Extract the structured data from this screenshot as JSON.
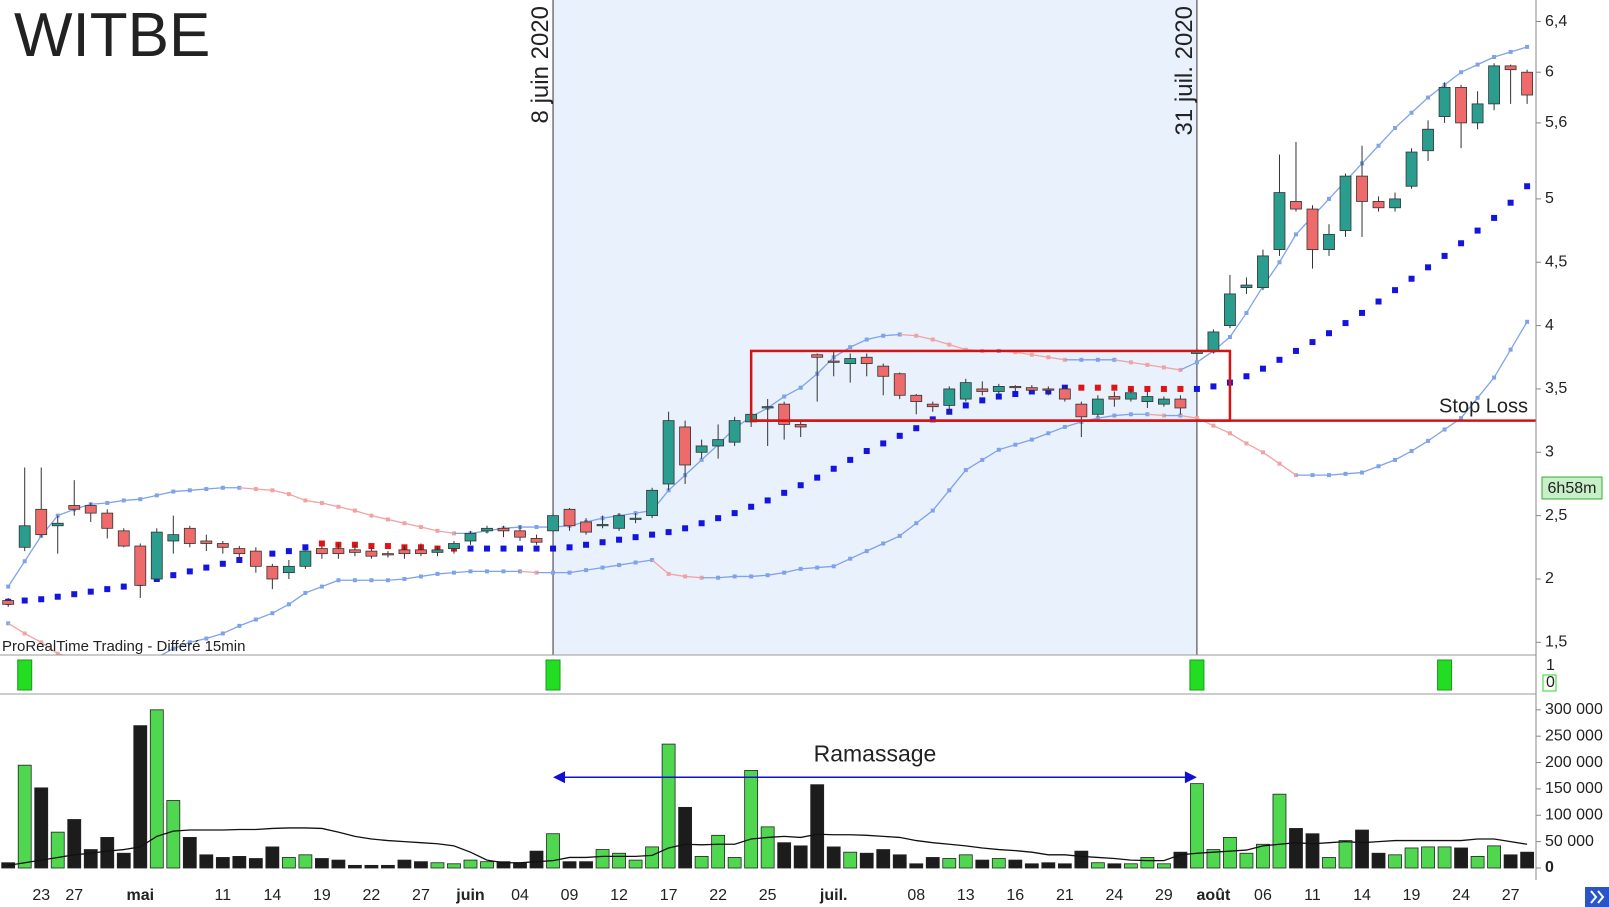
{
  "chart_data": [
    {
      "type": "candlestick",
      "watermark": "WITBE",
      "source": "ProRealTime Trading - Différé 15min",
      "timer": "6h58m",
      "categories": [
        null,
        null,
        "23",
        null,
        "27",
        null,
        null,
        null,
        "mai",
        null,
        null,
        null,
        null,
        "11",
        null,
        null,
        "14",
        null,
        null,
        "19",
        null,
        null,
        "22",
        null,
        null,
        "27",
        null,
        null,
        "juin",
        null,
        null,
        "04",
        null,
        null,
        "09",
        null,
        null,
        "12",
        null,
        null,
        "17",
        null,
        null,
        "22",
        null,
        null,
        "25",
        null,
        null,
        null,
        "juil.",
        null,
        null,
        null,
        null,
        "08",
        null,
        null,
        "13",
        null,
        null,
        "16",
        null,
        null,
        "21",
        null,
        null,
        "24",
        null,
        null,
        "29",
        null,
        null,
        "août",
        null,
        null,
        "06",
        null,
        null,
        "11",
        null,
        null,
        "14",
        null,
        null,
        "19",
        null,
        null,
        "24",
        null,
        null,
        "27",
        null
      ],
      "open": [
        1.83,
        2.25,
        2.55,
        2.42,
        2.58,
        2.58,
        2.52,
        2.38,
        2.26,
        2.0,
        2.3,
        2.4,
        2.3,
        2.28,
        2.24,
        2.22,
        2.1,
        2.05,
        2.1,
        2.24,
        2.24,
        2.23,
        2.22,
        2.2,
        2.23,
        2.23,
        2.21,
        2.24,
        2.3,
        2.38,
        2.4,
        2.38,
        2.32,
        2.38,
        2.55,
        2.45,
        2.42,
        2.4,
        2.47,
        2.5,
        2.75,
        3.2,
        3.0,
        3.05,
        3.08,
        3.24,
        3.35,
        3.38,
        3.22,
        3.77,
        3.72,
        3.7,
        3.75,
        3.68,
        3.62,
        3.45,
        3.38,
        3.37,
        3.42,
        3.5,
        3.48,
        3.52,
        3.51,
        3.5,
        3.5,
        3.38,
        3.3,
        3.44,
        3.42,
        3.4,
        3.38,
        3.42,
        3.78,
        3.8,
        4.0,
        4.3,
        4.3,
        4.6,
        4.98,
        4.92,
        4.6,
        4.75,
        5.18,
        4.98,
        4.93,
        5.1,
        5.38,
        5.65,
        5.88,
        5.6,
        5.75,
        6.05,
        6.0
      ],
      "high": [
        1.85,
        2.88,
        2.88,
        2.5,
        2.78,
        2.6,
        2.55,
        2.4,
        2.28,
        2.4,
        2.5,
        2.42,
        2.35,
        2.3,
        2.26,
        2.25,
        2.12,
        2.15,
        2.24,
        2.26,
        2.28,
        2.27,
        2.25,
        2.22,
        2.26,
        2.28,
        2.26,
        2.3,
        2.38,
        2.42,
        2.42,
        2.42,
        2.35,
        2.52,
        2.56,
        2.48,
        2.5,
        2.52,
        2.52,
        2.72,
        3.32,
        3.25,
        3.1,
        3.22,
        3.28,
        3.32,
        3.42,
        3.4,
        3.25,
        3.78,
        3.8,
        3.78,
        3.78,
        3.7,
        3.63,
        3.46,
        3.4,
        3.52,
        3.58,
        3.56,
        3.54,
        3.53,
        3.53,
        3.52,
        3.52,
        3.4,
        3.45,
        3.48,
        3.5,
        3.48,
        3.44,
        3.45,
        3.82,
        3.97,
        4.4,
        4.38,
        4.6,
        5.35,
        5.45,
        4.95,
        4.8,
        5.2,
        5.42,
        5.02,
        5.05,
        5.4,
        5.62,
        5.92,
        5.9,
        5.85,
        6.07,
        6.06,
        6.02
      ],
      "low": [
        1.78,
        2.22,
        2.33,
        2.2,
        2.5,
        2.45,
        2.32,
        2.25,
        1.85,
        1.98,
        2.2,
        2.25,
        2.22,
        2.2,
        2.15,
        2.05,
        1.92,
        2.0,
        2.08,
        2.16,
        2.16,
        2.18,
        2.16,
        2.17,
        2.16,
        2.18,
        2.18,
        2.2,
        2.27,
        2.36,
        2.33,
        2.3,
        2.27,
        2.36,
        2.38,
        2.35,
        2.4,
        2.38,
        2.44,
        2.48,
        2.7,
        2.75,
        2.95,
        2.95,
        3.05,
        3.2,
        3.05,
        3.1,
        3.12,
        3.4,
        3.6,
        3.55,
        3.6,
        3.45,
        3.42,
        3.3,
        3.32,
        3.3,
        3.4,
        3.45,
        3.46,
        3.48,
        3.47,
        3.45,
        3.4,
        3.12,
        3.28,
        3.36,
        3.4,
        3.35,
        3.36,
        3.3,
        3.78,
        3.78,
        3.98,
        4.25,
        4.28,
        4.55,
        4.9,
        4.45,
        4.55,
        4.7,
        4.7,
        4.9,
        4.9,
        5.08,
        5.3,
        5.6,
        5.4,
        5.55,
        5.7,
        5.75,
        5.75
      ],
      "close": [
        1.8,
        2.42,
        2.35,
        2.44,
        2.55,
        2.52,
        2.4,
        2.26,
        1.95,
        2.37,
        2.35,
        2.28,
        2.28,
        2.25,
        2.2,
        2.1,
        2.0,
        2.1,
        2.22,
        2.2,
        2.2,
        2.21,
        2.18,
        2.19,
        2.2,
        2.2,
        2.23,
        2.28,
        2.36,
        2.4,
        2.38,
        2.33,
        2.29,
        2.5,
        2.42,
        2.37,
        2.43,
        2.5,
        2.48,
        2.7,
        3.25,
        2.9,
        3.05,
        3.1,
        3.25,
        3.3,
        3.36,
        3.22,
        3.2,
        3.75,
        3.71,
        3.74,
        3.7,
        3.6,
        3.45,
        3.4,
        3.36,
        3.5,
        3.55,
        3.48,
        3.52,
        3.51,
        3.49,
        3.49,
        3.42,
        3.28,
        3.42,
        3.42,
        3.47,
        3.44,
        3.42,
        3.35,
        3.8,
        3.95,
        4.25,
        4.32,
        4.55,
        5.05,
        4.92,
        4.6,
        4.72,
        5.18,
        4.98,
        4.93,
        5.0,
        5.37,
        5.55,
        5.88,
        5.6,
        5.75,
        6.05,
        6.02,
        5.82
      ],
      "up_color": "#2a9d8f",
      "down_color": "#ef6b6b",
      "bands": [
        {
          "values": [
            1.94,
            2.14,
            2.34,
            2.5,
            2.55,
            2.59,
            2.6,
            2.62,
            2.63,
            2.66,
            2.69,
            2.7,
            2.71,
            2.72,
            2.72,
            2.71,
            2.7,
            2.67,
            2.62,
            2.6,
            2.57,
            2.54,
            2.5,
            2.47,
            2.44,
            2.41,
            2.38,
            2.36,
            2.36,
            2.38,
            2.4,
            2.41,
            2.41,
            2.41,
            2.42,
            2.45,
            2.48,
            2.5,
            2.52,
            2.54,
            2.7,
            2.82,
            2.94,
            3.06,
            3.19,
            3.28,
            3.35,
            3.44,
            3.51,
            3.62,
            3.75,
            3.83,
            3.89,
            3.92,
            3.93,
            3.92,
            3.89,
            3.85,
            3.81,
            3.8,
            3.8,
            3.79,
            3.77,
            3.75,
            3.73,
            3.73,
            3.73,
            3.73,
            3.71,
            3.69,
            3.67,
            3.65,
            3.71,
            3.8,
            3.91,
            4.1,
            4.31,
            4.5,
            4.72,
            4.86,
            5.0,
            5.14,
            5.28,
            5.42,
            5.56,
            5.68,
            5.8,
            5.9,
            6.0,
            6.06,
            6.12,
            6.16,
            6.2
          ]
        },
        {
          "values": [
            1.65,
            1.57,
            1.5,
            1.41,
            1.38,
            1.35,
            1.33,
            1.34,
            1.35,
            1.38,
            1.45,
            1.5,
            1.53,
            1.57,
            1.63,
            1.68,
            1.73,
            1.8,
            1.89,
            1.94,
            1.99,
            1.99,
            1.99,
            1.99,
            2.0,
            2.02,
            2.04,
            2.05,
            2.06,
            2.06,
            2.06,
            2.06,
            2.05,
            2.05,
            2.05,
            2.07,
            2.09,
            2.11,
            2.13,
            2.15,
            2.04,
            2.02,
            2.01,
            2.01,
            2.02,
            2.02,
            2.03,
            2.05,
            2.08,
            2.09,
            2.1,
            2.16,
            2.22,
            2.28,
            2.34,
            2.44,
            2.54,
            2.7,
            2.86,
            2.94,
            3.02,
            3.06,
            3.1,
            3.15,
            3.2,
            3.24,
            3.27,
            3.29,
            3.3,
            3.3,
            3.29,
            3.29,
            3.27,
            3.21,
            3.15,
            3.07,
            3.0,
            2.91,
            2.82,
            2.82,
            2.82,
            2.83,
            2.84,
            2.89,
            2.94,
            3.01,
            3.09,
            3.18,
            3.27,
            3.43,
            3.59,
            3.81,
            4.03
          ]
        }
      ],
      "band_rise_color": "#7fa3ea",
      "band_fall_color": "#f0a3a3",
      "sar": [
        {
          "color": "#1414e0",
          "values": [
            1.82,
            1.83,
            1.84,
            1.86,
            1.88,
            1.9,
            1.92,
            1.94,
            1.97,
            2.0,
            2.03,
            2.06,
            2.09,
            2.12,
            2.15,
            2.18,
            2.2,
            2.22,
            2.25,
            null,
            null,
            null,
            null,
            null,
            null,
            null,
            null,
            null,
            2.24,
            2.24,
            2.24,
            2.24,
            2.24,
            2.24,
            2.25,
            2.27,
            2.29,
            2.31,
            2.33,
            2.35,
            2.37,
            2.4,
            2.44,
            2.48,
            2.52,
            2.57,
            2.62,
            2.68,
            2.74,
            2.8,
            2.87,
            2.94,
            3.01,
            3.07,
            3.13,
            3.19,
            3.26,
            3.32,
            3.37,
            3.41,
            3.44,
            3.46,
            3.48,
            3.48,
            3.51,
            null,
            null,
            null,
            null,
            null,
            null,
            null,
            3.5,
            3.52,
            3.55,
            3.6,
            3.66,
            3.73,
            3.8,
            3.87,
            3.94,
            4.02,
            4.1,
            4.19,
            4.28,
            4.37,
            4.46,
            4.55,
            4.65,
            4.75,
            4.85,
            4.97,
            5.1
          ]
        },
        {
          "color": "#e01414",
          "values": [
            null,
            null,
            null,
            null,
            null,
            null,
            null,
            null,
            null,
            null,
            null,
            null,
            null,
            null,
            null,
            null,
            null,
            null,
            null,
            2.28,
            2.27,
            2.27,
            2.26,
            2.26,
            2.25,
            2.25,
            2.24,
            2.24,
            null,
            null,
            null,
            null,
            null,
            null,
            null,
            null,
            null,
            null,
            null,
            null,
            null,
            null,
            null,
            null,
            null,
            null,
            null,
            null,
            null,
            null,
            null,
            null,
            null,
            null,
            null,
            null,
            null,
            null,
            null,
            null,
            null,
            null,
            null,
            null,
            null,
            3.51,
            3.51,
            3.51,
            3.5,
            3.5,
            3.5,
            3.5,
            null,
            null,
            null,
            null,
            null,
            null,
            null,
            null,
            null,
            null,
            null,
            null,
            null,
            null,
            null,
            null,
            null,
            null,
            null,
            null,
            null
          ]
        }
      ],
      "markers": [
        {
          "label": "8 juin 2020",
          "at": 33
        },
        {
          "label": "31 juil. 2020",
          "at": 72
        }
      ],
      "shade_between_markers": true,
      "shade_color": "#e9f1fd",
      "box": {
        "from": 45,
        "to": 74,
        "low": 3.25,
        "high": 3.8,
        "color": "#d41414"
      },
      "stop_loss": {
        "label": "Stop Loss",
        "value": 3.25,
        "color": "#d41414"
      },
      "ylim": [
        1.4,
        6.57
      ],
      "yticks": [
        {
          "value": 1.5,
          "label": "1,5"
        },
        2,
        {
          "value": 2.5,
          "label": "2,5"
        },
        3,
        {
          "value": 3.5,
          "label": "3,5"
        },
        4,
        {
          "value": 4.5,
          "label": "4,5"
        },
        5,
        {
          "value": 5.6,
          "label": "5,6"
        },
        6,
        {
          "value": 6.4,
          "label": "6,4"
        }
      ]
    },
    {
      "type": "signal",
      "color": "#22dd22",
      "values": [
        0,
        1,
        0,
        0,
        0,
        0,
        0,
        0,
        0,
        0,
        0,
        0,
        0,
        0,
        0,
        0,
        0,
        0,
        0,
        0,
        0,
        0,
        0,
        0,
        0,
        0,
        0,
        0,
        0,
        0,
        0,
        0,
        0,
        1,
        0,
        0,
        0,
        0,
        0,
        0,
        0,
        0,
        0,
        0,
        0,
        0,
        0,
        0,
        0,
        0,
        0,
        0,
        0,
        0,
        0,
        0,
        0,
        0,
        0,
        0,
        0,
        0,
        0,
        0,
        0,
        0,
        0,
        0,
        0,
        0,
        0,
        0,
        1,
        0,
        0,
        0,
        0,
        0,
        0,
        0,
        0,
        0,
        0,
        0,
        0,
        0,
        0,
        1,
        0,
        0,
        0,
        0,
        0
      ],
      "ylim": [
        0,
        1
      ],
      "yticks": [
        1,
        0
      ]
    },
    {
      "type": "bar",
      "up_color": "#4fd84f",
      "down_color": "#1c1c1c",
      "average_color": "#111",
      "values": [
        10000,
        195000,
        152000,
        68000,
        92000,
        35000,
        58000,
        28000,
        270000,
        300000,
        128000,
        58000,
        25000,
        20000,
        22000,
        18000,
        40000,
        20000,
        25000,
        18000,
        15000,
        5000,
        5000,
        5000,
        15000,
        12000,
        10000,
        8000,
        15000,
        12000,
        12000,
        10000,
        32000,
        65000,
        12000,
        12000,
        35000,
        28000,
        15000,
        40000,
        235000,
        115000,
        22000,
        62000,
        20000,
        185000,
        78000,
        48000,
        42000,
        158000,
        40000,
        30000,
        28000,
        35000,
        25000,
        8000,
        20000,
        18000,
        25000,
        15000,
        18000,
        15000,
        8000,
        10000,
        8000,
        32000,
        10000,
        8000,
        8000,
        20000,
        8000,
        30000,
        160000,
        35000,
        58000,
        28000,
        45000,
        140000,
        75000,
        65000,
        20000,
        52000,
        72000,
        28000,
        25000,
        38000,
        40000,
        40000,
        38000,
        22000,
        42000,
        25000,
        30000
      ],
      "average": [
        5000,
        10000,
        15000,
        20000,
        25000,
        28000,
        32000,
        35000,
        40000,
        60000,
        70000,
        72000,
        72000,
        72000,
        73000,
        73000,
        75000,
        76000,
        76000,
        75000,
        68000,
        60000,
        55000,
        52000,
        50000,
        48000,
        46000,
        42000,
        30000,
        15000,
        10000,
        10000,
        12000,
        14000,
        20000,
        20000,
        22000,
        22000,
        22000,
        24000,
        38000,
        45000,
        44000,
        45000,
        45000,
        55000,
        58000,
        60000,
        58000,
        64000,
        63000,
        63000,
        62000,
        60000,
        58000,
        52000,
        48000,
        45000,
        42000,
        38000,
        35000,
        33000,
        30000,
        25000,
        25000,
        22000,
        20000,
        18000,
        15000,
        14000,
        14000,
        25000,
        28000,
        30000,
        32000,
        34000,
        42000,
        45000,
        48000,
        46000,
        48000,
        50000,
        48000,
        50000,
        52000,
        52000,
        52000,
        52000,
        52000,
        55000,
        55000,
        50000,
        45000
      ],
      "annotation": {
        "label": "Ramassage",
        "from": 33,
        "to": 72,
        "value": 172000,
        "color": "#1010d0"
      },
      "ylim": [
        0,
        330000
      ],
      "yticks": [
        0,
        {
          "value": 50000,
          "label": "50 000"
        },
        {
          "value": 100000,
          "label": "100 000"
        },
        {
          "value": 150000,
          "label": "150 000"
        },
        {
          "value": 200000,
          "label": "200 000"
        },
        {
          "value": 250000,
          "label": "250 000"
        },
        {
          "value": 300000,
          "label": "300 000"
        }
      ]
    }
  ]
}
